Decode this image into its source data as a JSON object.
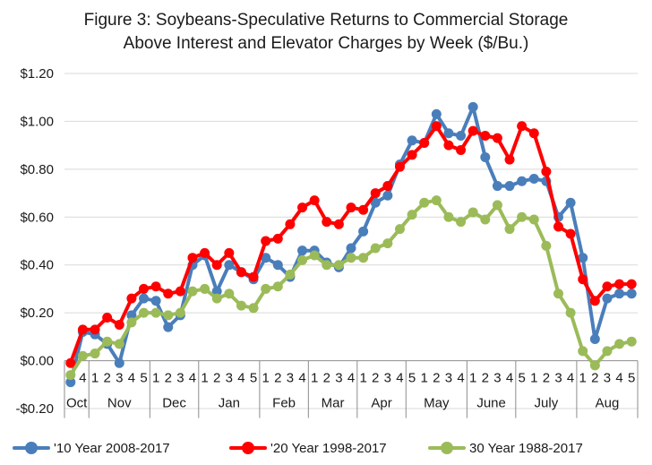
{
  "title_line1": "Figure 3: Soybeans-Speculative Returns to Commercial Storage",
  "title_line2": "Above Interest and Elevator Charges by Week ($/Bu.)",
  "chart_data": {
    "type": "line",
    "title": "Figure 3: Soybeans-Speculative Returns to Commercial Storage Above Interest and Elevator Charges by Week ($/Bu.)",
    "ylim": [
      -0.2,
      1.2
    ],
    "yticks": [
      -0.2,
      0.0,
      0.2,
      0.4,
      0.6,
      0.8,
      1.0,
      1.2
    ],
    "ytick_labels": [
      "-$0.20",
      "$0.00",
      "$0.20",
      "$0.40",
      "$0.60",
      "$0.80",
      "$1.00",
      "$1.20"
    ],
    "grid": true,
    "legend_position": "bottom",
    "weeks": [
      "3",
      "4",
      "1",
      "2",
      "3",
      "4",
      "5",
      "1",
      "2",
      "3",
      "4",
      "1",
      "2",
      "3",
      "4",
      "5",
      "1",
      "2",
      "3",
      "4",
      "1",
      "2",
      "3",
      "4",
      "1",
      "2",
      "3",
      "4",
      "5",
      "1",
      "2",
      "3",
      "4",
      "1",
      "2",
      "3",
      "4",
      "5",
      "1",
      "2",
      "3",
      "4",
      "1",
      "2",
      "3",
      "4",
      "5"
    ],
    "months": [
      {
        "label": "Oct",
        "weeks": 2
      },
      {
        "label": "Nov",
        "weeks": 5
      },
      {
        "label": "Dec",
        "weeks": 4
      },
      {
        "label": "Jan",
        "weeks": 5
      },
      {
        "label": "Feb",
        "weeks": 4
      },
      {
        "label": "Mar",
        "weeks": 4
      },
      {
        "label": "Apr",
        "weeks": 4
      },
      {
        "label": "May",
        "weeks": 5
      },
      {
        "label": "June",
        "weeks": 4
      },
      {
        "label": "July",
        "weeks": 5
      },
      {
        "label": "Aug",
        "weeks": 5
      }
    ],
    "series": [
      {
        "name": "'10 Year 2008-2017",
        "color": "#4a7ebb",
        "values": [
          -0.09,
          0.12,
          0.11,
          0.07,
          -0.01,
          0.19,
          0.26,
          0.25,
          0.14,
          0.19,
          0.4,
          0.44,
          0.29,
          0.4,
          0.37,
          0.34,
          0.43,
          0.4,
          0.35,
          0.46,
          0.46,
          0.41,
          0.39,
          0.47,
          0.54,
          0.66,
          0.69,
          0.82,
          0.92,
          0.91,
          1.03,
          0.95,
          0.94,
          1.06,
          0.85,
          0.73,
          0.73,
          0.75,
          0.76,
          0.75,
          0.6,
          0.66,
          0.43,
          0.09,
          0.26,
          0.28,
          0.28
        ]
      },
      {
        "name": "'20 Year 1998-2017",
        "color": "#ff0000",
        "values": [
          -0.01,
          0.13,
          0.13,
          0.18,
          0.15,
          0.26,
          0.3,
          0.31,
          0.28,
          0.29,
          0.43,
          0.45,
          0.4,
          0.45,
          0.37,
          0.35,
          0.5,
          0.51,
          0.57,
          0.64,
          0.67,
          0.58,
          0.57,
          0.64,
          0.63,
          0.7,
          0.73,
          0.81,
          0.86,
          0.91,
          0.98,
          0.9,
          0.88,
          0.96,
          0.94,
          0.93,
          0.84,
          0.98,
          0.95,
          0.79,
          0.56,
          0.53,
          0.34,
          0.25,
          0.31,
          0.32,
          0.32
        ]
      },
      {
        "name": "30 Year 1988-2017",
        "color": "#9bbb59",
        "values": [
          -0.06,
          0.02,
          0.03,
          0.08,
          0.07,
          0.16,
          0.2,
          0.2,
          0.19,
          0.2,
          0.29,
          0.3,
          0.26,
          0.28,
          0.23,
          0.22,
          0.3,
          0.31,
          0.36,
          0.42,
          0.44,
          0.4,
          0.4,
          0.43,
          0.43,
          0.47,
          0.49,
          0.55,
          0.61,
          0.66,
          0.67,
          0.6,
          0.58,
          0.62,
          0.59,
          0.65,
          0.55,
          0.6,
          0.59,
          0.48,
          0.28,
          0.2,
          0.04,
          -0.02,
          0.04,
          0.07,
          0.08
        ]
      }
    ]
  }
}
